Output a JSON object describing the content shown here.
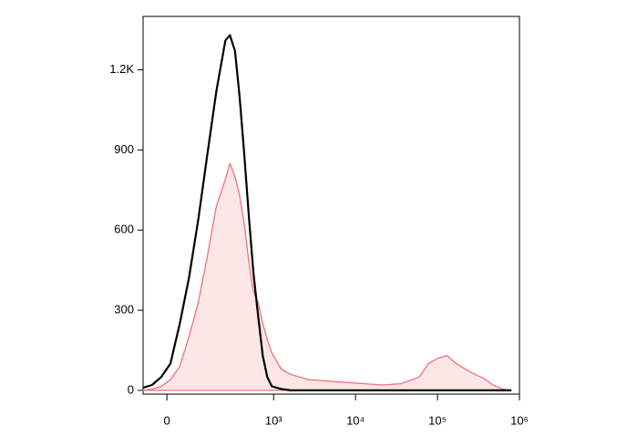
{
  "chart_data": {
    "type": "histogram-overlay",
    "xscale": "arcsinh",
    "x": [
      -72,
      -43,
      -16,
      10,
      37,
      66,
      100,
      139,
      188,
      249,
      285,
      332,
      379,
      434,
      495,
      564,
      644,
      734,
      836,
      952,
      1235,
      1600,
      2680,
      4510,
      7560,
      12680,
      21280,
      35700,
      59900,
      77600,
      100500,
      130300,
      168700,
      218600,
      283200,
      366600,
      475000,
      615000,
      797000
    ],
    "series": [
      {
        "color": "#f07080",
        "fill": "#fde6e6",
        "values": [
          0,
          5,
          15,
          40,
          90,
          200,
          330,
          500,
          690,
          790,
          850,
          800,
          730,
          620,
          480,
          370,
          330,
          250,
          190,
          140,
          80,
          60,
          40,
          35,
          30,
          25,
          20,
          25,
          50,
          100,
          120,
          130,
          100,
          80,
          60,
          45,
          20,
          5,
          0
        ]
      },
      {
        "color": "#000000",
        "values": [
          10,
          20,
          50,
          100,
          250,
          420,
          640,
          880,
          1120,
          1310,
          1330,
          1270,
          1100,
          880,
          650,
          440,
          280,
          130,
          50,
          15,
          5,
          0,
          0,
          0,
          0,
          0,
          0,
          0,
          0,
          0,
          0,
          0,
          0,
          0,
          0,
          0,
          0,
          0,
          0
        ]
      }
    ],
    "xlim": [
      -72,
      1000000
    ],
    "xticks": [
      0,
      {
        "value": 1000,
        "label": "10³"
      },
      {
        "value": 10000,
        "label": "10⁴"
      },
      {
        "value": 100000,
        "label": "10⁵"
      },
      {
        "value": 1000000,
        "label": "10⁶"
      }
    ],
    "ylim": [
      -14,
      1400
    ],
    "yticks": [
      0,
      300,
      600,
      900,
      {
        "value": 1200,
        "label": "1.2K"
      }
    ]
  }
}
